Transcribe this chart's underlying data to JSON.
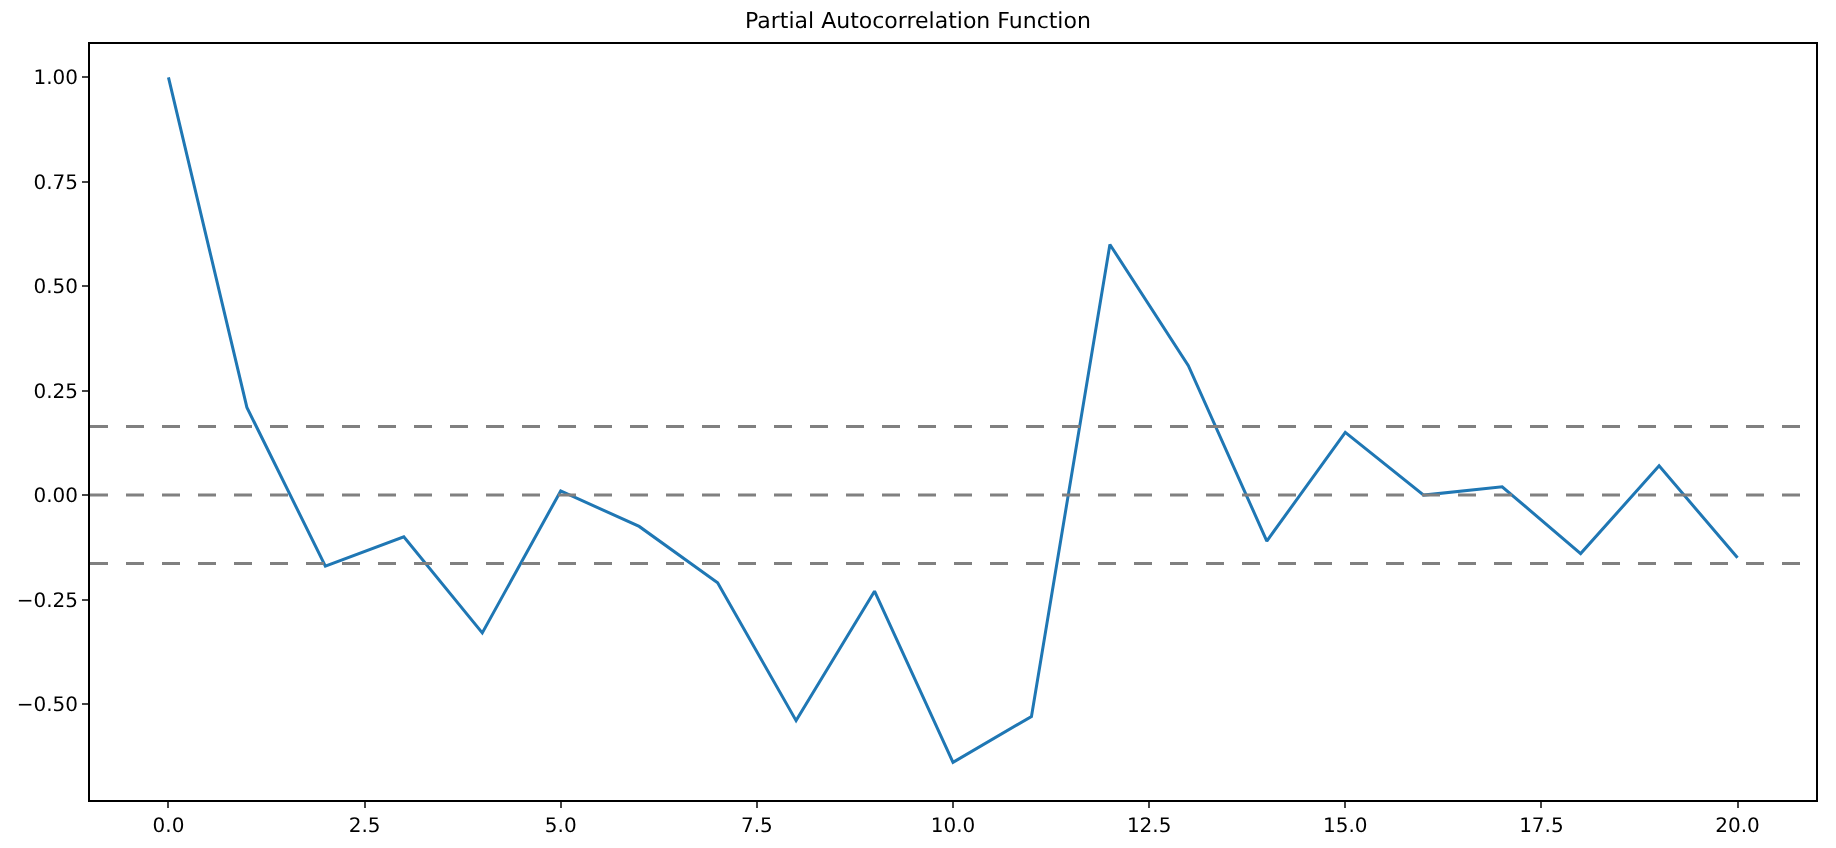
{
  "chart_data": {
    "type": "line",
    "title": "Partial Autocorrelation Function",
    "x": [
      0,
      1,
      2,
      3,
      4,
      5,
      6,
      7,
      8,
      9,
      10,
      11,
      12,
      13,
      14,
      15,
      16,
      17,
      18,
      19,
      20
    ],
    "series": [
      {
        "color": "#1f77b4",
        "values": [
          1.0,
          0.21,
          -0.17,
          -0.1,
          -0.33,
          0.01,
          -0.075,
          -0.21,
          -0.54,
          -0.23,
          -0.64,
          -0.53,
          0.6,
          0.31,
          -0.11,
          0.15,
          0.0,
          0.02,
          -0.14,
          0.07,
          -0.15
        ]
      }
    ],
    "xlim": [
      -1,
      21
    ],
    "xticks": [
      {
        "value": 0,
        "label": "0.0"
      },
      {
        "value": 2.5,
        "label": "2.5"
      },
      {
        "value": 5,
        "label": "5.0"
      },
      {
        "value": 7.5,
        "label": "7.5"
      },
      {
        "value": 10,
        "label": "10.0"
      },
      {
        "value": 12.5,
        "label": "12.5"
      },
      {
        "value": 15,
        "label": "15.0"
      },
      {
        "value": 17.5,
        "label": "17.5"
      },
      {
        "value": 20,
        "label": "20.0"
      }
    ],
    "ylim": [
      -0.73,
      1.08
    ],
    "yticks": [
      {
        "value": -0.5,
        "label": "−0.50"
      },
      {
        "value": -0.25,
        "label": "−0.25"
      },
      {
        "value": 0,
        "label": "0.00"
      },
      {
        "value": 0.25,
        "label": "0.25"
      },
      {
        "value": 0.5,
        "label": "0.50"
      },
      {
        "value": 0.75,
        "label": "0.75"
      },
      {
        "value": 1,
        "label": "1.00"
      }
    ],
    "ref_lines": [
      {
        "axis": "y",
        "value": -0.164,
        "color": "#808080",
        "line_style": "dashed"
      },
      {
        "axis": "y",
        "value": 0,
        "color": "#808080",
        "line_style": "dashed"
      },
      {
        "axis": "y",
        "value": 0.164,
        "color": "#808080",
        "line_style": "dashed"
      }
    ],
    "grid": false,
    "marker": "none",
    "line_style": "solid"
  }
}
